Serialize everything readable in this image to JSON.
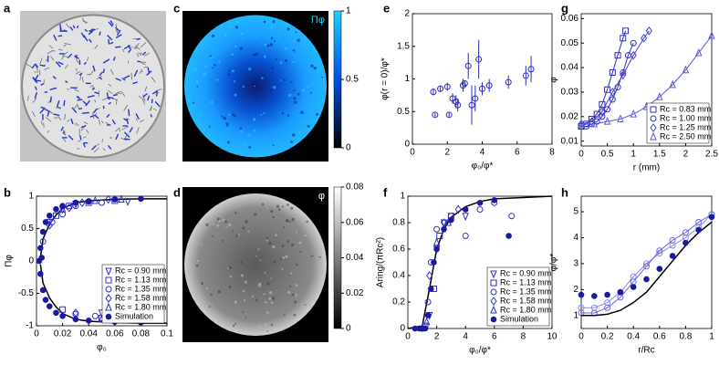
{
  "chart_data": [
    {
      "type": "image",
      "panel": "a"
    },
    {
      "type": "heatmap",
      "panel": "c",
      "colormap": "cyan",
      "label": "Πφ",
      "ylim": [
        0,
        1
      ],
      "yticks": [
        0,
        0.5,
        1
      ]
    },
    {
      "type": "scatter",
      "panel": "e",
      "xlabel": "φ₀/φ*",
      "ylabel": "φ(r = 0)/φ*",
      "xlim": [
        0,
        8
      ],
      "xticks": [
        0,
        2,
        4,
        6,
        8
      ],
      "ylim": [
        0,
        2
      ],
      "yticks": [
        0,
        0.5,
        1,
        1.5,
        2
      ],
      "series": [
        {
          "color": "#2b2bc0",
          "marker": "circle",
          "x": [
            1.2,
            1.3,
            1.6,
            2.0,
            2.1,
            2.3,
            2.5,
            2.6,
            2.9,
            3.0,
            3.2,
            3.4,
            3.6,
            3.8,
            4.0,
            4.4,
            5.5,
            6.5,
            6.8
          ],
          "values": [
            0.8,
            0.45,
            0.85,
            0.88,
            0.45,
            0.7,
            0.65,
            0.6,
            0.9,
            0.93,
            1.2,
            0.6,
            0.7,
            1.3,
            0.85,
            0.9,
            0.95,
            1.05,
            1.15
          ],
          "errors": [
            0.05,
            0.03,
            0.05,
            0.06,
            0.04,
            0.08,
            0.1,
            0.1,
            0.1,
            0.05,
            0.2,
            0.3,
            0.2,
            0.3,
            0.1,
            0.1,
            0.1,
            0.15,
            0.2
          ]
        }
      ]
    },
    {
      "type": "line",
      "panel": "g",
      "xlabel": "r (mm)",
      "ylabel": "φ",
      "xlim": [
        0,
        2.5
      ],
      "xticks": [
        0,
        0.5,
        1,
        1.5,
        2,
        2.5
      ],
      "ylim": [
        0.008,
        0.062
      ],
      "yticks": [
        0.01,
        0.02,
        0.03,
        0.04,
        0.05,
        0.06
      ],
      "legend": "lower right",
      "series": [
        {
          "name": "Rc = 0.83 mm",
          "color": "#2b2bc0",
          "marker": "square",
          "line": true,
          "x": [
            0,
            0.1,
            0.2,
            0.3,
            0.4,
            0.5,
            0.6,
            0.7,
            0.8,
            0.85
          ],
          "values": [
            0.016,
            0.017,
            0.019,
            0.021,
            0.025,
            0.031,
            0.038,
            0.045,
            0.052,
            0.055
          ]
        },
        {
          "name": "Rc = 1.00 mm",
          "color": "#3030c8",
          "marker": "circle",
          "line": true,
          "x": [
            0,
            0.1,
            0.2,
            0.3,
            0.4,
            0.5,
            0.6,
            0.7,
            0.8,
            0.9,
            1.0
          ],
          "values": [
            0.016,
            0.016,
            0.017,
            0.018,
            0.02,
            0.023,
            0.027,
            0.032,
            0.038,
            0.045,
            0.05
          ]
        },
        {
          "name": "Rc = 1.25 mm",
          "color": "#4040d0",
          "marker": "diamond",
          "line": true,
          "x": [
            0,
            0.2,
            0.4,
            0.6,
            0.8,
            1.0,
            1.2,
            1.3
          ],
          "values": [
            0.017,
            0.018,
            0.022,
            0.03,
            0.037,
            0.045,
            0.052,
            0.055
          ]
        },
        {
          "name": "Rc = 2.50 mm",
          "color": "#5a5ae0",
          "marker": "triangle",
          "line": true,
          "x": [
            0,
            0.25,
            0.5,
            0.75,
            1,
            1.25,
            1.5,
            1.75,
            2,
            2.25,
            2.5
          ],
          "values": [
            0.017,
            0.017,
            0.018,
            0.019,
            0.021,
            0.024,
            0.028,
            0.033,
            0.039,
            0.046,
            0.053
          ]
        }
      ]
    },
    {
      "type": "scatter",
      "panel": "b",
      "xlabel": "φ₀",
      "ylabel": "Πφ",
      "xlim": [
        0,
        0.1
      ],
      "xticks": [
        0,
        0.02,
        0.04,
        0.06,
        0.08,
        0.1
      ],
      "ylim": [
        -1,
        1
      ],
      "yticks": [
        -1,
        -0.5,
        0,
        0.5,
        1
      ],
      "legend": "lower right",
      "series": [
        {
          "color": "#000000",
          "line": true,
          "x": [
            0.003,
            0.005,
            0.01,
            0.015,
            0.02,
            0.03,
            0.04,
            0.06,
            0.08,
            0.1
          ],
          "values": [
            0.05,
            0.34,
            0.57,
            0.71,
            0.81,
            0.9,
            0.93,
            0.95,
            0.96,
            0.96
          ]
        },
        {
          "color": "#000000",
          "line": true,
          "x": [
            0.003,
            0.005,
            0.01,
            0.015,
            0.02,
            0.03,
            0.04,
            0.06,
            0.08,
            0.1
          ],
          "values": [
            -0.05,
            -0.34,
            -0.57,
            -0.71,
            -0.81,
            -0.9,
            -0.93,
            -0.95,
            -0.96,
            -0.96
          ]
        },
        {
          "name": "Rc = 0.90 mm",
          "color": "#3030c8",
          "marker": "triangle-down",
          "x": [
            0.01,
            0.02,
            0.03,
            0.05,
            0.07,
            0.08
          ],
          "values": [
            0.6,
            0.8,
            0.88,
            -0.8,
            0.92,
            -0.85
          ]
        },
        {
          "name": "Rc = 1.13 mm",
          "color": "#3030c8",
          "marker": "square",
          "x": [
            0.015,
            0.025,
            0.04,
            0.06,
            0.02,
            0.05
          ],
          "values": [
            0.7,
            0.85,
            0.9,
            0.93,
            -0.75,
            -0.88
          ]
        },
        {
          "name": "Rc = 1.35 mm",
          "color": "#3030c8",
          "marker": "circle",
          "x": [
            0.005,
            0.012,
            0.02,
            0.03,
            0.04,
            0.05,
            0.03,
            0.045
          ],
          "values": [
            0.3,
            0.6,
            0.72,
            0.85,
            0.92,
            0.9,
            -0.82,
            -0.85
          ]
        },
        {
          "name": "Rc = 1.58 mm",
          "color": "#3030c8",
          "marker": "diamond",
          "x": [
            0.01,
            0.025,
            0.035,
            0.055,
            0.03
          ],
          "values": [
            0.55,
            0.82,
            0.9,
            0.95,
            -0.8
          ]
        },
        {
          "name": "Rc = 1.80 mm",
          "color": "#3030c8",
          "marker": "triangle",
          "x": [
            0.02,
            0.045,
            0.065,
            0.05
          ],
          "values": [
            0.8,
            0.93,
            0.95,
            -0.9
          ]
        },
        {
          "name": "Simulation",
          "color": "#1a1aa0",
          "marker": "dot",
          "x": [
            0.003,
            0.005,
            0.007,
            0.01,
            0.015,
            0.02,
            0.03,
            0.04,
            0.06,
            0.08,
            0.003,
            0.005,
            0.007,
            0.01,
            0.015,
            0.02,
            0.03,
            0.04,
            0.06,
            0.08,
            0.002,
            0.004
          ],
          "values": [
            0.2,
            0.45,
            0.6,
            0.7,
            0.8,
            0.85,
            0.9,
            0.92,
            0.95,
            0.96,
            -0.2,
            -0.45,
            -0.6,
            -0.7,
            -0.8,
            -0.85,
            -0.9,
            -0.92,
            -0.94,
            -0.95,
            0,
            0.05
          ]
        }
      ]
    },
    {
      "type": "heatmap",
      "panel": "d",
      "colormap": "gray",
      "label": "φ",
      "ylim": [
        0,
        0.08
      ],
      "yticks": [
        0,
        0.02,
        0.04,
        0.06,
        0.08
      ]
    },
    {
      "type": "scatter",
      "panel": "f",
      "xlabel": "φ₀/φ*",
      "ylabel": "Aring/(πRc²)",
      "xlim": [
        0,
        10
      ],
      "xticks": [
        0,
        2,
        4,
        6,
        8,
        10
      ],
      "ylim": [
        0,
        1
      ],
      "yticks": [
        0,
        0.2,
        0.4,
        0.6,
        0.8,
        1
      ],
      "legend": "lower right",
      "series": [
        {
          "color": "#000000",
          "line": true,
          "x": [
            0,
            1,
            1.5,
            2,
            2.5,
            3,
            4,
            5,
            6,
            8,
            10
          ],
          "values": [
            0,
            0.02,
            0.3,
            0.6,
            0.75,
            0.84,
            0.92,
            0.96,
            0.98,
            0.99,
            1
          ]
        },
        {
          "name": "Rc = 0.90 mm",
          "color": "#3030c8",
          "marker": "triangle-down",
          "x": [
            1.5,
            2,
            2.5,
            4
          ],
          "values": [
            0.1,
            0.6,
            0.8,
            0.85
          ]
        },
        {
          "name": "Rc = 1.13 mm",
          "color": "#3030c8",
          "marker": "square",
          "x": [
            1.2,
            1.8,
            2.2,
            3
          ],
          "values": [
            0.02,
            0.3,
            0.7,
            0.85
          ]
        },
        {
          "name": "Rc = 1.35 mm",
          "color": "#3030c8",
          "marker": "circle",
          "x": [
            1,
            1.4,
            1.6,
            2,
            3,
            4,
            5,
            6,
            7.2
          ],
          "values": [
            0,
            0.2,
            0.5,
            0.75,
            0.85,
            0.7,
            0.9,
            0.95,
            0.85
          ]
        },
        {
          "name": "Rc = 1.58 mm",
          "color": "#3030c8",
          "marker": "diamond",
          "x": [
            1.5,
            2.5,
            3.5
          ],
          "values": [
            0.4,
            0.8,
            0.9
          ]
        },
        {
          "name": "Rc = 1.80 mm",
          "color": "#3030c8",
          "marker": "triangle",
          "x": [
            1.3,
            2,
            2.8
          ],
          "values": [
            0.05,
            0.65,
            0.8
          ]
        },
        {
          "name": "Simulation",
          "color": "#1a1aa0",
          "marker": "dot",
          "x": [
            0.5,
            0.8,
            1,
            1.2,
            1.4,
            1.6,
            1.8,
            2,
            2.5,
            3,
            4,
            5,
            6,
            7
          ],
          "values": [
            0,
            0,
            0,
            0,
            0.1,
            0.3,
            0.5,
            0.6,
            0.75,
            0.82,
            0.9,
            0.95,
            0.97,
            0.7
          ]
        }
      ]
    },
    {
      "type": "line",
      "panel": "h",
      "xlabel": "r/Rc",
      "ylabel": "φ/φ*",
      "xlim": [
        0,
        1
      ],
      "xticks": [
        0,
        0.2,
        0.4,
        0.6,
        0.8,
        1
      ],
      "ylim": [
        0.5,
        5.6
      ],
      "yticks": [
        1,
        2,
        3,
        4,
        5
      ],
      "series": [
        {
          "color": "#8a8ae8",
          "line": true,
          "marker": "circle",
          "x": [
            0,
            0.1,
            0.2,
            0.3,
            0.4,
            0.5,
            0.6,
            0.7,
            0.8,
            0.9,
            1
          ],
          "values": [
            1.3,
            1.3,
            1.5,
            1.9,
            2.5,
            3.0,
            3.4,
            3.7,
            4.0,
            4.4,
            4.9
          ]
        },
        {
          "color": "#6a6ad8",
          "line": true,
          "marker": "circle",
          "x": [
            0,
            0.1,
            0.2,
            0.3,
            0.4,
            0.5,
            0.6,
            0.7,
            0.8,
            0.9,
            1
          ],
          "values": [
            1.1,
            1.1,
            1.3,
            1.7,
            2.3,
            2.9,
            3.5,
            3.9,
            4.2,
            4.6,
            4.9
          ]
        },
        {
          "color": "#000000",
          "line": true,
          "x": [
            0,
            0.1,
            0.2,
            0.3,
            0.4,
            0.5,
            0.6,
            0.7,
            0.8,
            0.9,
            1
          ],
          "values": [
            1.0,
            1.0,
            1.05,
            1.2,
            1.5,
            1.9,
            2.5,
            3.1,
            3.7,
            4.2,
            4.6
          ]
        },
        {
          "color": "#1a1aa0",
          "marker": "dot",
          "x": [
            0,
            0.1,
            0.2,
            0.3,
            0.4,
            0.5,
            0.6,
            0.7,
            0.8,
            0.9,
            1
          ],
          "values": [
            1.8,
            1.75,
            1.8,
            1.9,
            2.1,
            2.4,
            2.8,
            3.3,
            3.8,
            4.3,
            4.8
          ]
        }
      ]
    }
  ]
}
